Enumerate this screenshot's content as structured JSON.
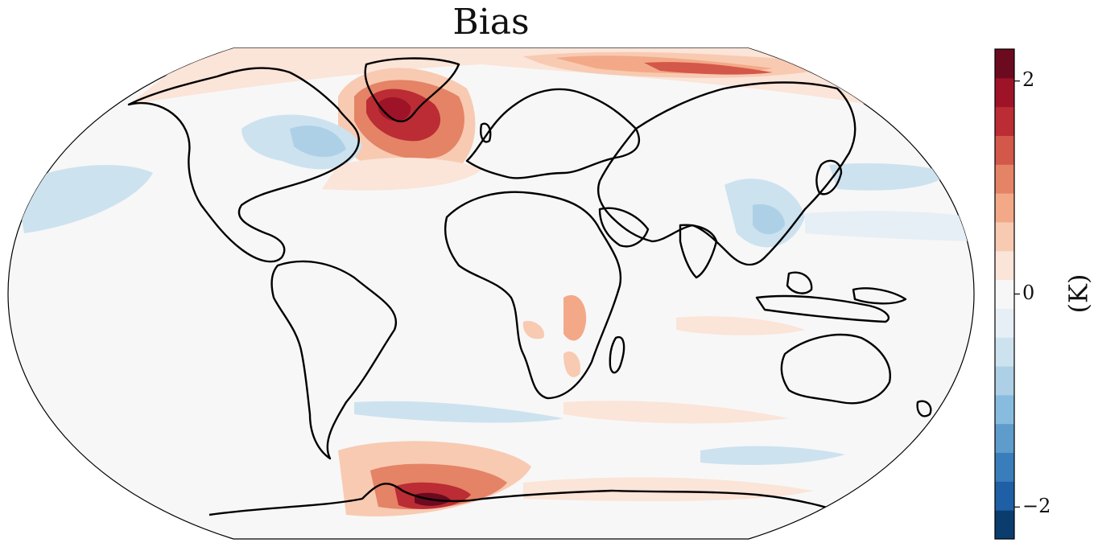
{
  "title": "Bias",
  "colorbar": {
    "label": "(K)",
    "ticks": [
      {
        "value": 2,
        "label": "2"
      },
      {
        "value": 0,
        "label": "0"
      },
      {
        "value": -2,
        "label": "−2"
      }
    ],
    "range": [
      -2.3,
      2.3
    ],
    "levels": [
      "#0b3c6e",
      "#1f5fa6",
      "#3a7dbb",
      "#5d9ccb",
      "#88bcde",
      "#aed0e6",
      "#cde2ef",
      "#e6eff6",
      "#f7f7f7",
      "#fbe4d8",
      "#f8cab2",
      "#f3a987",
      "#e48366",
      "#d3584a",
      "#bb2c34",
      "#9e1327",
      "#6c0a1f"
    ]
  },
  "colors": {
    "warm_strong": "#9e1327",
    "warm_mid": "#e48366",
    "warm_light": "#f8cab2",
    "cool_light": "#cde2ef",
    "cool_mid": "#aed0e6",
    "background": "#f7f7f7",
    "coastline": "#000000"
  }
}
